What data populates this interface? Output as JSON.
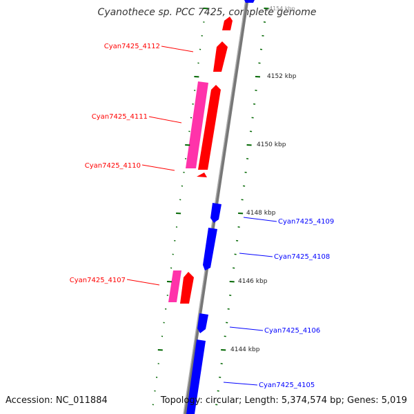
{
  "header": {
    "title": "Cyanothece sp. PCC 7425, complete genome"
  },
  "footer": {
    "accession": "Accession: NC_011884",
    "summary": "Topology: circular; Length: 5,374,574 bp; Genes: 5,019"
  },
  "colors": {
    "forward": "#ff0000",
    "forward_dark": "#c80000",
    "reverse": "#0000ff",
    "reverse_dark": "#00009a",
    "pseudo": "#ff33aa",
    "backbone": "#777777",
    "tick": "#006600"
  },
  "ticks": [
    {
      "label": "4154 kbp"
    },
    {
      "label": "4152 kbp"
    },
    {
      "label": "4150 kbp"
    },
    {
      "label": "4148 kbp"
    },
    {
      "label": "4146 kbp"
    },
    {
      "label": "4144 kbp"
    }
  ],
  "genes": [
    {
      "id": "Cyan7425_4112",
      "strand": "forward"
    },
    {
      "id": "Cyan7425_4111",
      "strand": "forward"
    },
    {
      "id": "Cyan7425_4110",
      "strand": "forward"
    },
    {
      "id": "Cyan7425_4109",
      "strand": "reverse"
    },
    {
      "id": "Cyan7425_4108",
      "strand": "reverse"
    },
    {
      "id": "Cyan7425_4107",
      "strand": "forward"
    },
    {
      "id": "Cyan7425_4106",
      "strand": "reverse"
    },
    {
      "id": "Cyan7425_4105",
      "strand": "reverse"
    }
  ]
}
